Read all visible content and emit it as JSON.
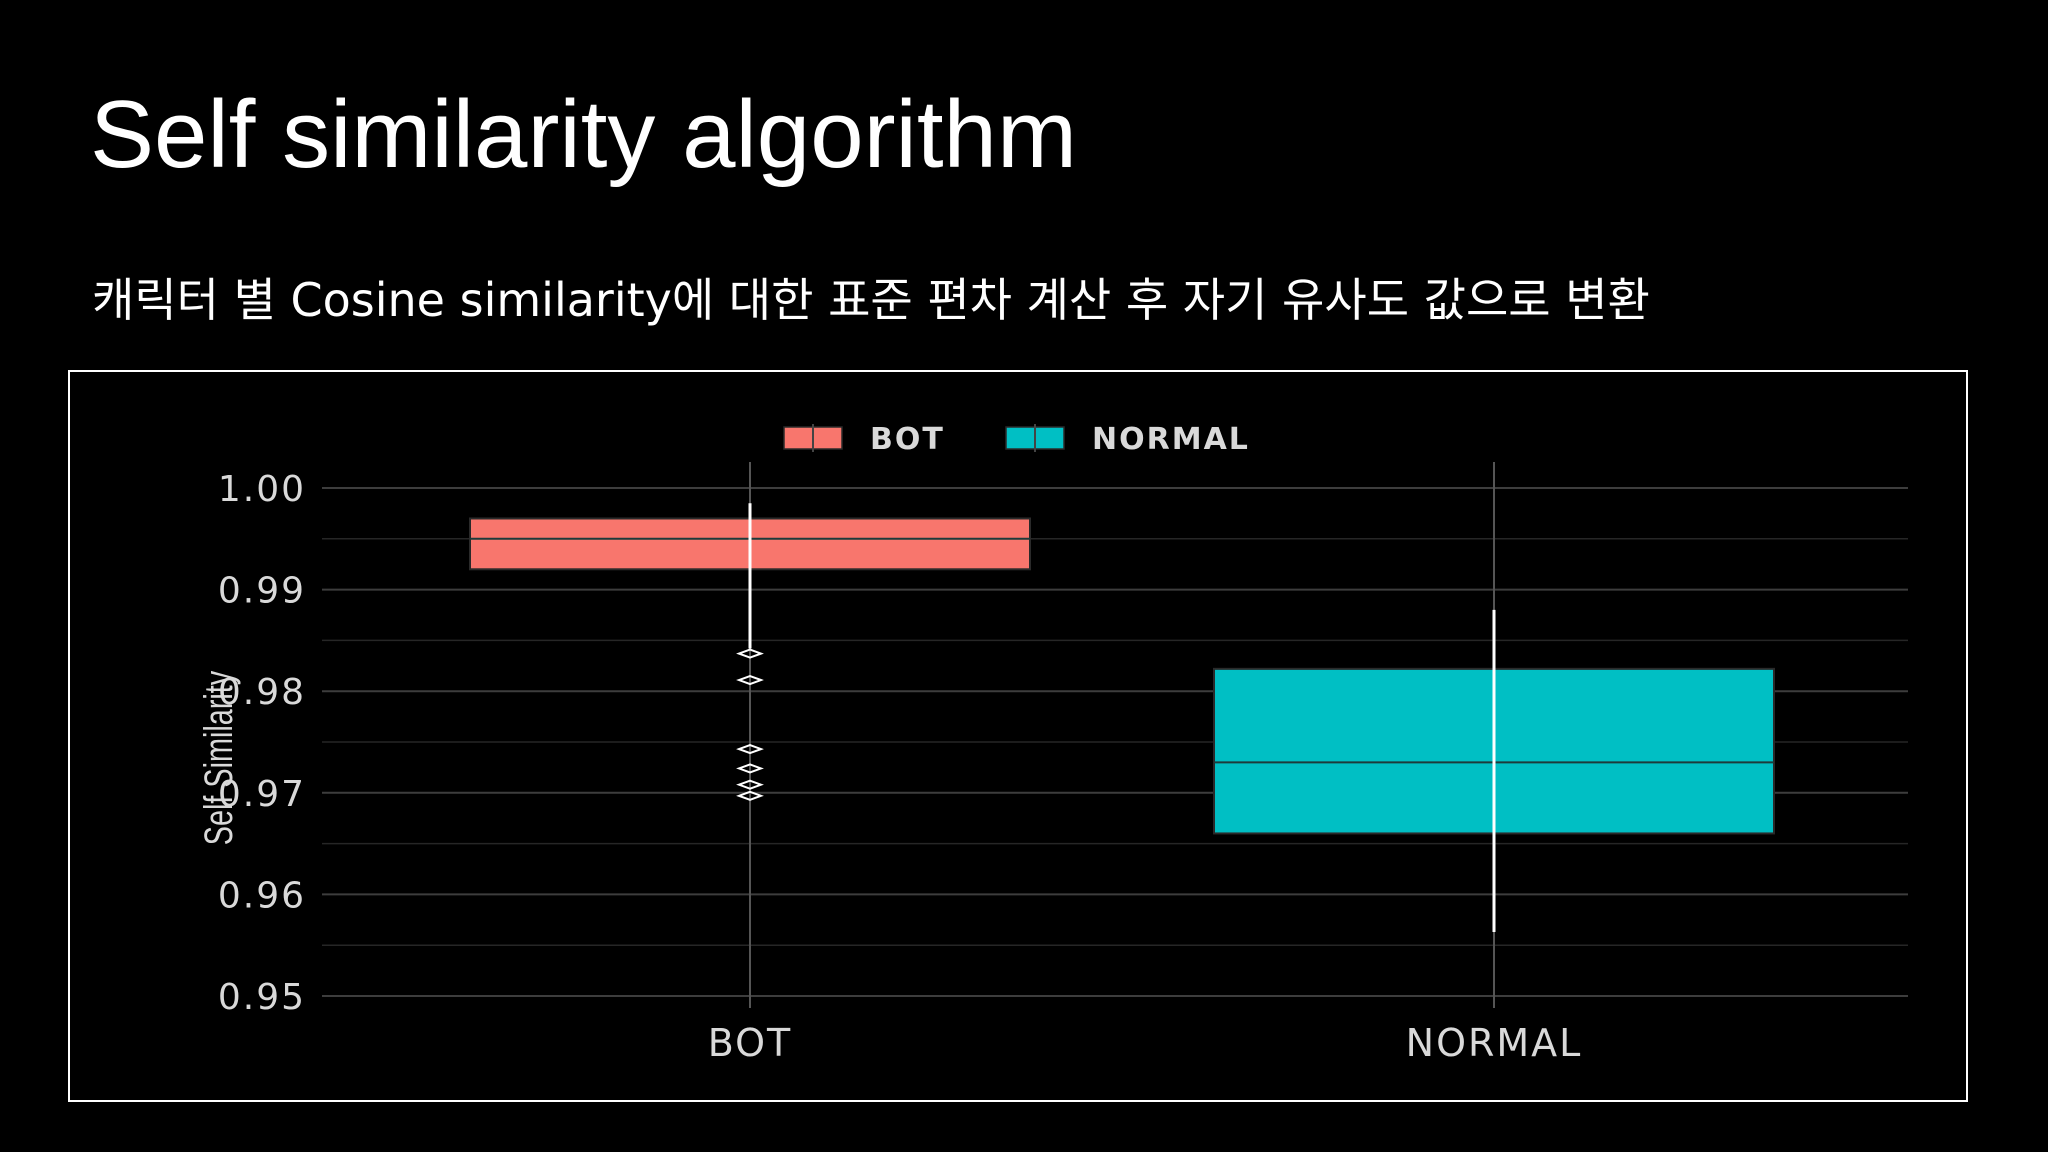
{
  "slide": {
    "title": "Self similarity algorithm",
    "subtitle": "캐릭터 별 Cosine similarity에 대한 표준 편차 계산 후 자기 유사도 값으로 변환"
  },
  "colors": {
    "background": "#000000",
    "text": "#ffffff",
    "bot": "#f8766d",
    "normal": "#00bfc4",
    "grid": "#3a3a3a",
    "axis_text": "#d9d9d9"
  },
  "chart_data": {
    "type": "box",
    "title": "",
    "xlabel": "",
    "ylabel": "Self Similarity",
    "ylim": [
      0.95,
      1.0
    ],
    "yticks": [
      1.0,
      0.99,
      0.98,
      0.97,
      0.96,
      0.95
    ],
    "ytick_labels": [
      "1.00",
      "0.99",
      "0.98",
      "0.97",
      "0.96",
      "0.95"
    ],
    "categories": [
      "BOT",
      "NORMAL"
    ],
    "grid": true,
    "legend": {
      "placement": "top",
      "entries": [
        {
          "label": "BOT",
          "color": "#f8766d"
        },
        {
          "label": "NORMAL",
          "color": "#00bfc4"
        }
      ]
    },
    "series": [
      {
        "name": "BOT",
        "color": "#f8766d",
        "whisker_low": 0.9842,
        "q1": 0.992,
        "median": 0.995,
        "q3": 0.997,
        "whisker_high": 0.9985,
        "outliers": [
          0.9837,
          0.9811,
          0.9743,
          0.9724,
          0.9708,
          0.9697
        ]
      },
      {
        "name": "NORMAL",
        "color": "#00bfc4",
        "whisker_low": 0.9563,
        "q1": 0.966,
        "median": 0.973,
        "q3": 0.9822,
        "whisker_high": 0.988,
        "outliers": []
      }
    ]
  }
}
